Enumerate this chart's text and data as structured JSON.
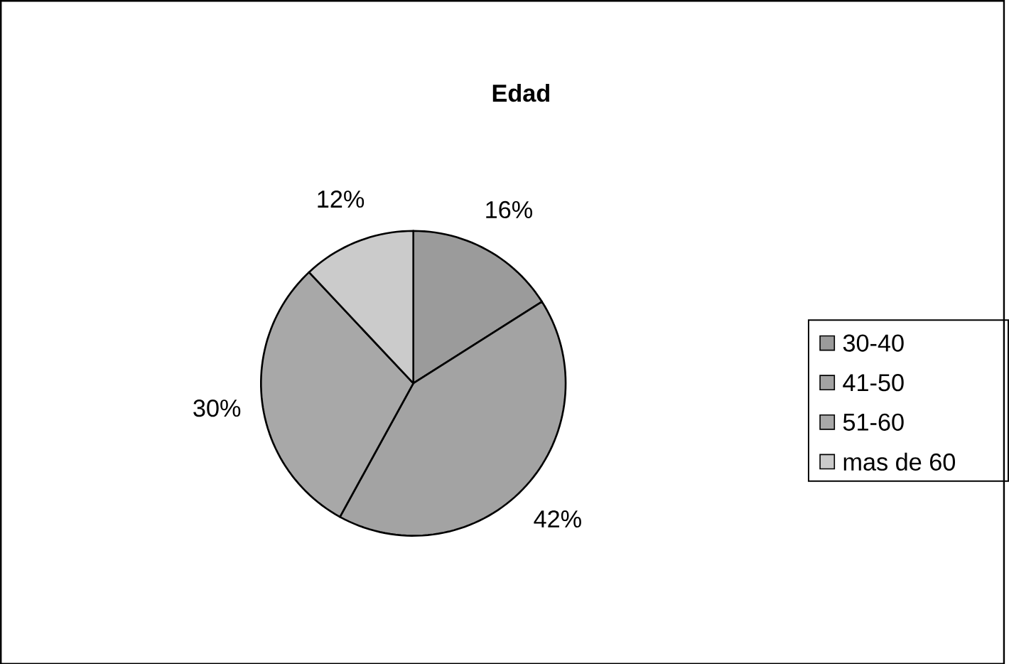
{
  "chart_data": {
    "type": "pie",
    "title": "Edad",
    "categories": [
      "30-40",
      "41-50",
      "51-60",
      "mas de 60"
    ],
    "values": [
      16,
      42,
      30,
      12
    ],
    "value_labels": [
      "16%",
      "42%",
      "30%",
      "12%"
    ],
    "colors": [
      "#9b9b9b",
      "#a3a3a3",
      "#a8a8a8",
      "#cbcbcb"
    ],
    "legend": "right"
  }
}
